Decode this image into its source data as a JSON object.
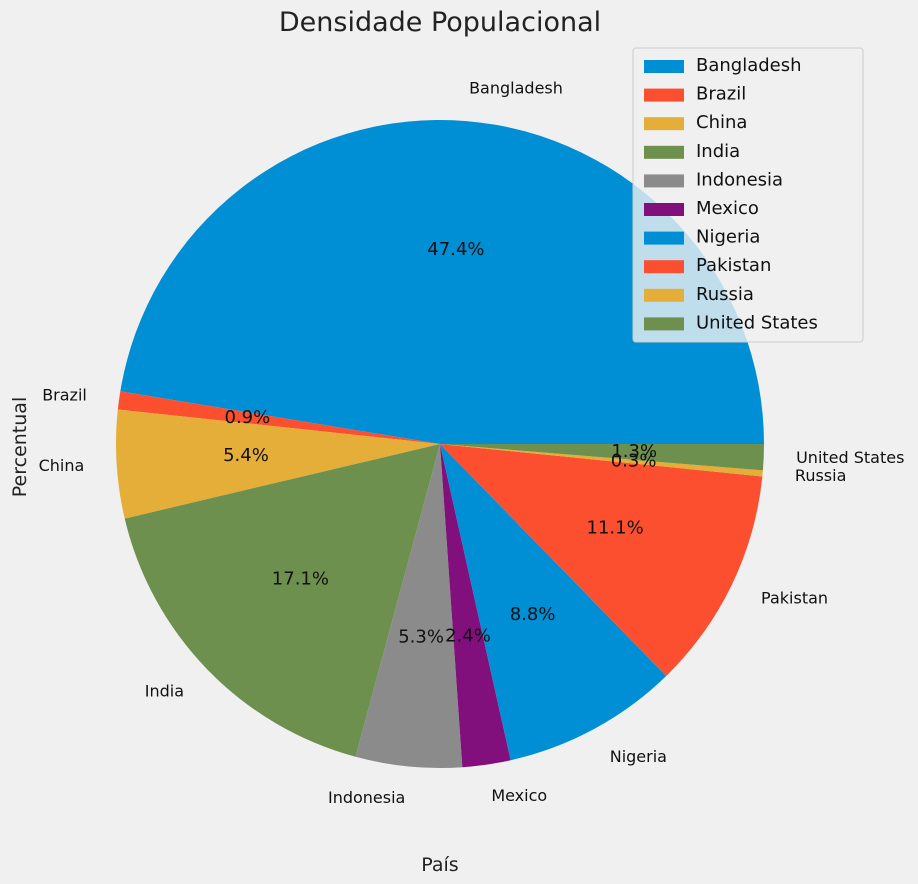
{
  "chart_data": {
    "type": "pie",
    "title": "Densidade Populacional",
    "xlabel": "País",
    "ylabel": "Percentual",
    "legend_position": "top-right",
    "categories": [
      "Bangladesh",
      "Brazil",
      "China",
      "India",
      "Indonesia",
      "Mexico",
      "Nigeria",
      "Pakistan",
      "Russia",
      "United States"
    ],
    "values": [
      47.4,
      0.9,
      5.4,
      17.1,
      5.3,
      2.4,
      8.8,
      11.1,
      0.3,
      1.3
    ],
    "value_labels": [
      "47.4%",
      "0.9%",
      "5.4%",
      "17.1%",
      "5.3%",
      "2.4%",
      "8.8%",
      "11.1%",
      "0.3%",
      "1.3%"
    ],
    "colors": [
      "#008fd5",
      "#fc4f30",
      "#e5ae38",
      "#6d904f",
      "#8b8b8b",
      "#810f7c",
      "#008fd5",
      "#fc4f30",
      "#e5ae38",
      "#6d904f"
    ],
    "start_angle_deg": 0,
    "direction": "counterclockwise"
  }
}
